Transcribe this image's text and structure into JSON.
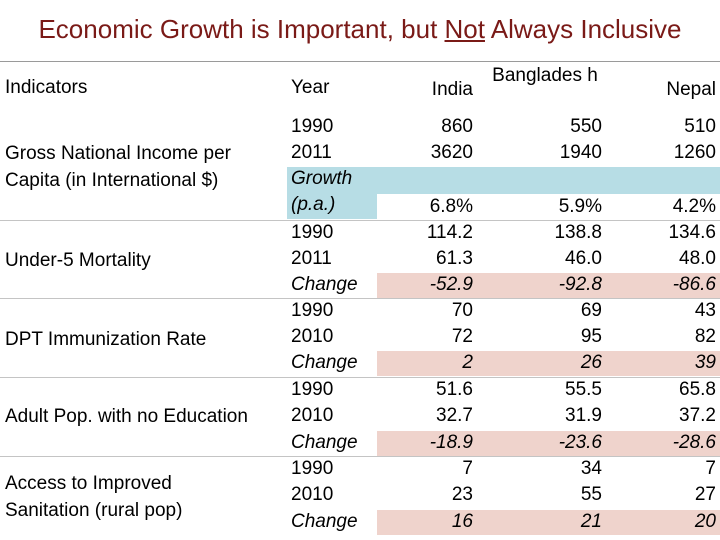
{
  "title": {
    "before": "Economic Growth is Important, but ",
    "underlined": "Not",
    "after": " Always Inclusive"
  },
  "columns": {
    "indicators": "Indicators",
    "year": "Year",
    "india": "India",
    "bangladesh": "Banglades h",
    "nepal": "Nepal"
  },
  "rows": [
    {
      "year": "1990",
      "india": "860",
      "bangladesh": "550",
      "nepal": "510",
      "style": "plain"
    },
    {
      "year": "2011",
      "india": "3620",
      "bangladesh": "1940",
      "nepal": "1260",
      "style": "plain"
    },
    {
      "year": "Growth (p.a.)",
      "india": "6.8%",
      "bangladesh": "5.9%",
      "nepal": "4.2%",
      "style": "growth"
    },
    {
      "year": "1990",
      "india": "114.2",
      "bangladesh": "138.8",
      "nepal": "134.6",
      "style": "plain"
    },
    {
      "year": "2011",
      "india": "61.3",
      "bangladesh": "46.0",
      "nepal": "48.0",
      "style": "plain"
    },
    {
      "year": "Change",
      "india": "-52.9",
      "bangladesh": "-92.8",
      "nepal": "-86.6",
      "style": "change"
    },
    {
      "year": "1990",
      "india": "70",
      "bangladesh": "69",
      "nepal": "43",
      "style": "plain"
    },
    {
      "year": "2010",
      "india": "72",
      "bangladesh": "95",
      "nepal": "82",
      "style": "plain"
    },
    {
      "year": "Change",
      "india": "2",
      "bangladesh": "26",
      "nepal": "39",
      "style": "change"
    },
    {
      "year": "1990",
      "india": "51.6",
      "bangladesh": "55.5",
      "nepal": "65.8",
      "style": "plain"
    },
    {
      "year": "2010",
      "india": "32.7",
      "bangladesh": "31.9",
      "nepal": "37.2",
      "style": "plain"
    },
    {
      "year": "Change",
      "india": "-18.9",
      "bangladesh": "-23.6",
      "nepal": "-28.6",
      "style": "change"
    },
    {
      "year": "1990",
      "india": "7",
      "bangladesh": "34",
      "nepal": "7",
      "style": "plain"
    },
    {
      "year": "2010",
      "india": "23",
      "bangladesh": "55",
      "nepal": "27",
      "style": "plain"
    },
    {
      "year": "Change",
      "india": "16",
      "bangladesh": "21",
      "nepal": "20",
      "style": "change"
    }
  ],
  "indicators": [
    {
      "lines": [
        "Gross National Income per",
        "Capita (in International $)"
      ]
    },
    {
      "lines": [
        "Under-5 Mortality"
      ]
    },
    {
      "lines": [
        "DPT Immunization Rate"
      ]
    },
    {
      "lines": [
        "Adult Pop. with no Education"
      ]
    },
    {
      "lines": [
        "Access to Improved",
        "Sanitation (rural pop)"
      ]
    }
  ],
  "colors": {
    "title": "#7a1a17",
    "growth_band": "#b7dde5",
    "change_band": "#efd3cc"
  }
}
